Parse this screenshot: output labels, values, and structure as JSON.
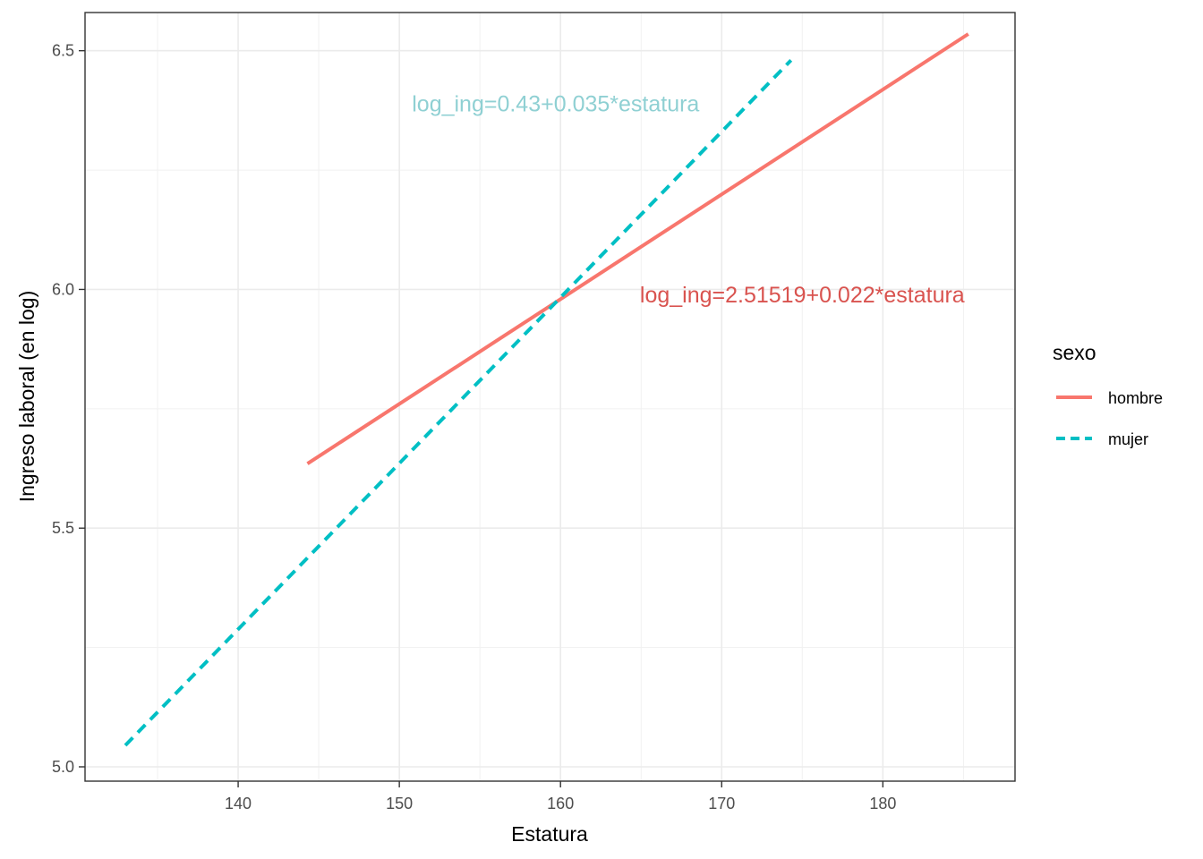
{
  "chart_data": {
    "type": "line",
    "xlabel": "Estatura",
    "ylabel": "Ingreso laboral (en log)",
    "xlim": [
      130.5,
      188.2
    ],
    "ylim": [
      4.97,
      6.58
    ],
    "x_ticks": [
      140,
      150,
      160,
      170,
      180
    ],
    "x_tick_labels": [
      "140",
      "150",
      "160",
      "170",
      "180"
    ],
    "x_minor_ticks": [
      135,
      145,
      155,
      165,
      175,
      185
    ],
    "y_ticks": [
      5.0,
      5.5,
      6.0,
      6.5
    ],
    "y_tick_labels": [
      "5.0",
      "5.5",
      "6.0",
      "6.5"
    ],
    "y_minor_ticks": [
      5.25,
      5.75,
      6.25
    ],
    "grid": true,
    "legend": {
      "title": "sexo",
      "position": "right"
    },
    "series": [
      {
        "name": "hombre",
        "color": "#F8766D",
        "linestyle": "solid",
        "x": [
          144.3,
          185.3
        ],
        "y": [
          5.635,
          6.535
        ]
      },
      {
        "name": "mujer",
        "color": "#00BFC4",
        "linestyle": "dashed",
        "x": [
          133.0,
          174.3
        ],
        "y": [
          5.045,
          6.48
        ]
      }
    ],
    "annotations": [
      {
        "text": "log_ing=0.43+0.035*estatura",
        "x": 159.7,
        "y": 6.39,
        "color": "#8FD0D3"
      },
      {
        "text": "log_ing=2.51519+0.022*estatura",
        "x": 175.0,
        "y": 5.99,
        "color": "#D9534F"
      }
    ]
  }
}
